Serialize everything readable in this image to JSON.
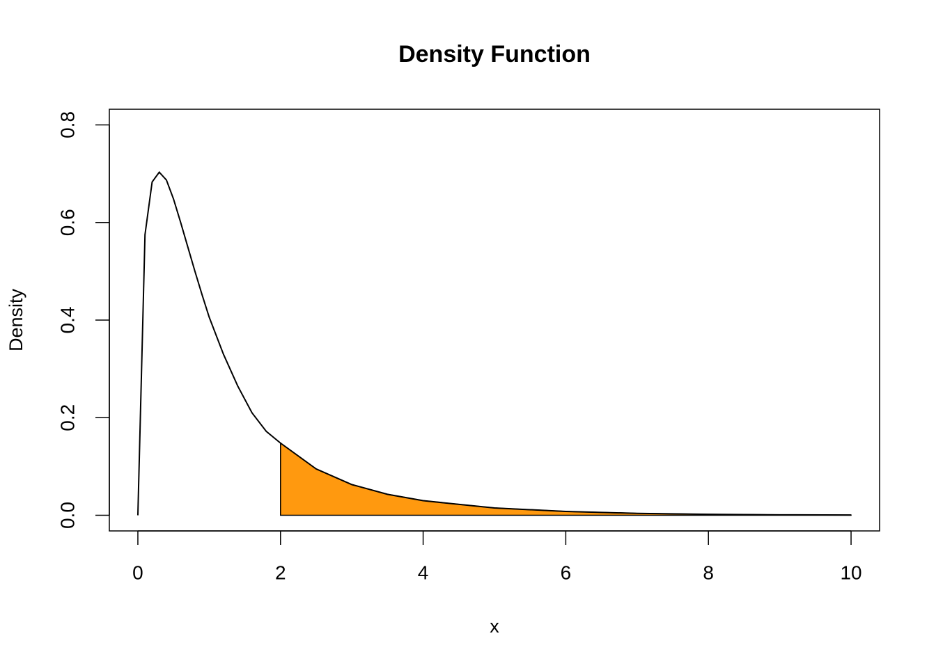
{
  "chart_data": {
    "type": "line",
    "title": "Density Function",
    "x_label": "x",
    "y_label": "Density",
    "x": [
      0,
      0.1,
      0.2,
      0.3,
      0.4,
      0.5,
      0.6,
      0.7,
      0.8,
      0.9,
      1.0,
      1.2,
      1.4,
      1.6,
      1.8,
      2.0,
      2.5,
      3.0,
      3.5,
      4.0,
      5.0,
      6.0,
      7.0,
      8.0,
      9.0,
      10.0
    ],
    "series": [
      {
        "name": "density",
        "color": "#000000",
        "values": [
          0,
          0.575,
          0.683,
          0.703,
          0.687,
          0.648,
          0.6,
          0.55,
          0.5,
          0.452,
          0.406,
          0.33,
          0.265,
          0.21,
          0.172,
          0.148,
          0.095,
          0.063,
          0.043,
          0.03,
          0.015,
          0.008,
          0.004,
          0.002,
          0.001,
          0.0006
        ]
      }
    ],
    "shade": {
      "from": 2,
      "to": 10,
      "color": "#ff990f"
    },
    "xlim": [
      -0.4,
      10.4
    ],
    "ylim": [
      -0.032,
      0.832
    ],
    "xticks": [
      0,
      2,
      4,
      6,
      8,
      10
    ],
    "yticks": [
      {
        "value": 0,
        "label": "0.0"
      },
      0.2,
      0.4,
      0.6,
      0.8
    ]
  }
}
